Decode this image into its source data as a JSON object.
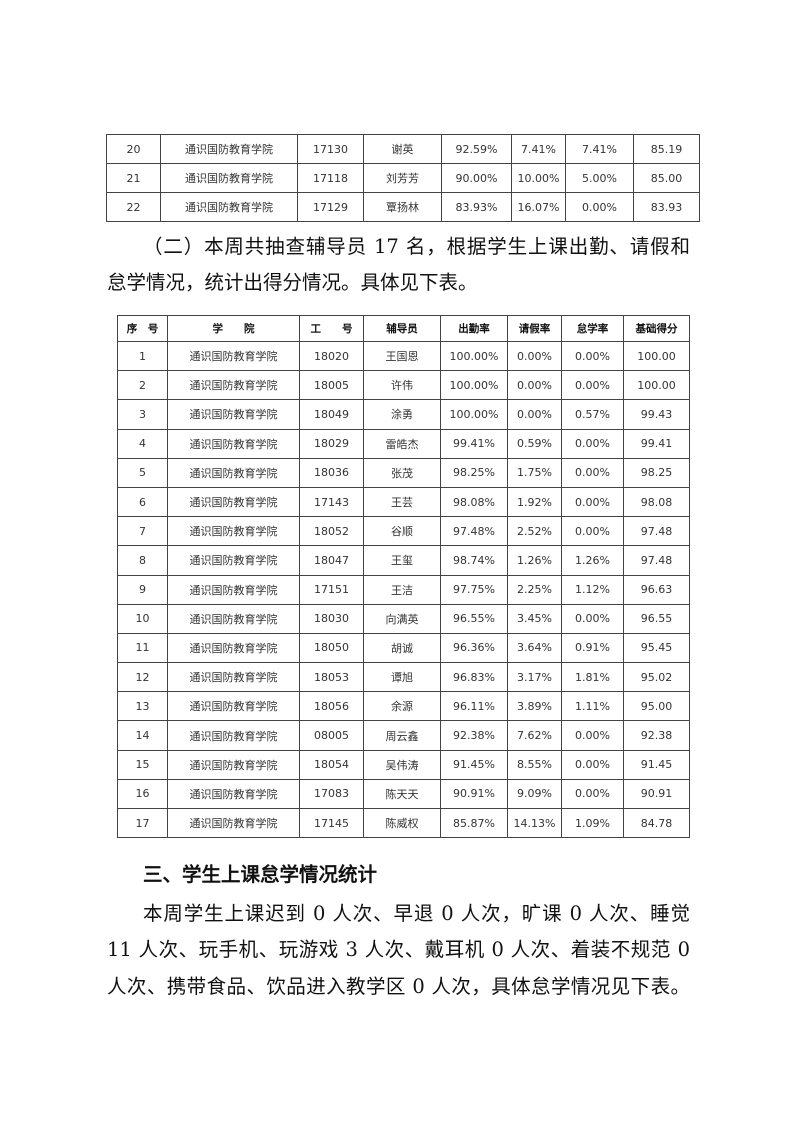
{
  "table1": {
    "rows": [
      [
        "20",
        "通识国防教育学院",
        "17130",
        "谢英",
        "92.59%",
        "7.41%",
        "7.41%",
        "85.19"
      ],
      [
        "21",
        "通识国防教育学院",
        "17118",
        "刘芳芳",
        "90.00%",
        "10.00%",
        "5.00%",
        "85.00"
      ],
      [
        "22",
        "通识国防教育学院",
        "17129",
        "覃扬林",
        "83.93%",
        "16.07%",
        "0.00%",
        "83.93"
      ]
    ]
  },
  "para1": [
    "（二）本周共抽查辅导员 17 名，根据学生上课出勤、请假和",
    "怠学情况，统计出得分情况。具体见下表。"
  ],
  "table2": {
    "headers": [
      "序　号",
      "学　　院",
      "工　　号",
      "辅导员",
      "出勤率",
      "请假率",
      "怠学率",
      "基础得分"
    ],
    "rows": [
      [
        "1",
        "通识国防教育学院",
        "18020",
        "王国恩",
        "100.00%",
        "0.00%",
        "0.00%",
        "100.00"
      ],
      [
        "2",
        "通识国防教育学院",
        "18005",
        "许伟",
        "100.00%",
        "0.00%",
        "0.00%",
        "100.00"
      ],
      [
        "3",
        "通识国防教育学院",
        "18049",
        "涂勇",
        "100.00%",
        "0.00%",
        "0.57%",
        "99.43"
      ],
      [
        "4",
        "通识国防教育学院",
        "18029",
        "雷皓杰",
        "99.41%",
        "0.59%",
        "0.00%",
        "99.41"
      ],
      [
        "5",
        "通识国防教育学院",
        "18036",
        "张茂",
        "98.25%",
        "1.75%",
        "0.00%",
        "98.25"
      ],
      [
        "6",
        "通识国防教育学院",
        "17143",
        "王芸",
        "98.08%",
        "1.92%",
        "0.00%",
        "98.08"
      ],
      [
        "7",
        "通识国防教育学院",
        "18052",
        "谷顺",
        "97.48%",
        "2.52%",
        "0.00%",
        "97.48"
      ],
      [
        "8",
        "通识国防教育学院",
        "18047",
        "王玺",
        "98.74%",
        "1.26%",
        "1.26%",
        "97.48"
      ],
      [
        "9",
        "通识国防教育学院",
        "17151",
        "王洁",
        "97.75%",
        "2.25%",
        "1.12%",
        "96.63"
      ],
      [
        "10",
        "通识国防教育学院",
        "18030",
        "向满英",
        "96.55%",
        "3.45%",
        "0.00%",
        "96.55"
      ],
      [
        "11",
        "通识国防教育学院",
        "18050",
        "胡诚",
        "96.36%",
        "3.64%",
        "0.91%",
        "95.45"
      ],
      [
        "12",
        "通识国防教育学院",
        "18053",
        "谭旭",
        "96.83%",
        "3.17%",
        "1.81%",
        "95.02"
      ],
      [
        "13",
        "通识国防教育学院",
        "18056",
        "余源",
        "96.11%",
        "3.89%",
        "1.11%",
        "95.00"
      ],
      [
        "14",
        "通识国防教育学院",
        "08005",
        "周云鑫",
        "92.38%",
        "7.62%",
        "0.00%",
        "92.38"
      ],
      [
        "15",
        "通识国防教育学院",
        "18054",
        "吴伟涛",
        "91.45%",
        "8.55%",
        "0.00%",
        "91.45"
      ],
      [
        "16",
        "通识国防教育学院",
        "17083",
        "陈天天",
        "90.91%",
        "9.09%",
        "0.00%",
        "90.91"
      ],
      [
        "17",
        "通识国防教育学院",
        "17145",
        "陈威权",
        "85.87%",
        "14.13%",
        "1.09%",
        "84.78"
      ]
    ]
  },
  "heading3": "三、学生上课怠学情况统计",
  "para2": [
    "本周学生上课迟到 0 人次、早退 0 人次，旷课 0 人次、睡觉",
    "11 人次、玩手机、玩游戏 3 人次、戴耳机 0 人次、着装不规范 0",
    "人次、携带食品、饮品进入教学区 0 人次，具体怠学情况见下表。"
  ]
}
